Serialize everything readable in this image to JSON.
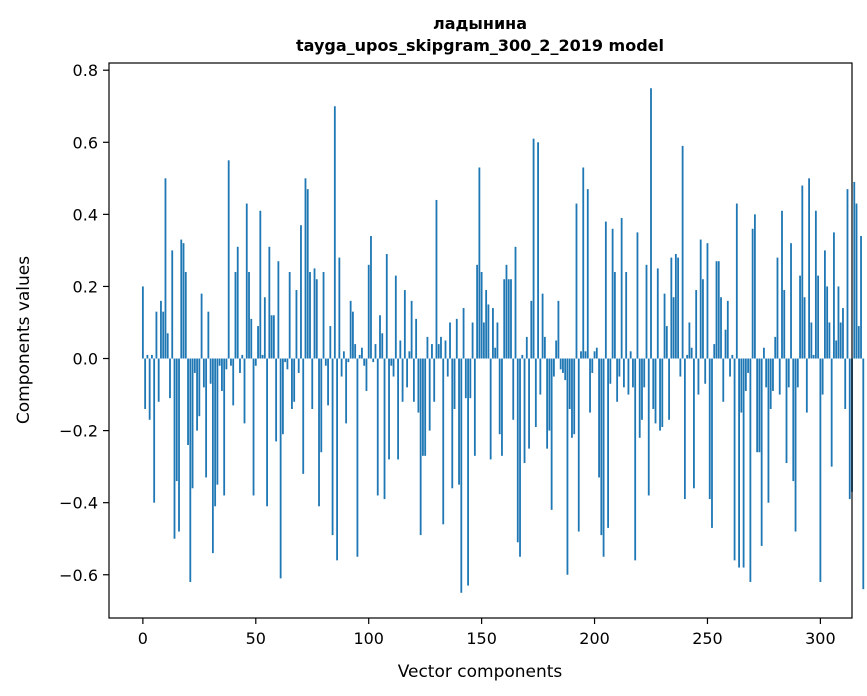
{
  "chart_data": {
    "type": "bar",
    "title": "ладынина",
    "subtitle": "tayga_upos_skipgram_300_2_2019 model",
    "xlabel": "Vector components",
    "ylabel": "Components values",
    "xlim": [
      -15,
      314
    ],
    "ylim": [
      -0.72,
      0.82
    ],
    "xticks": [
      0,
      50,
      100,
      150,
      200,
      250,
      300
    ],
    "yticks": [
      -0.6,
      -0.4,
      -0.2,
      0.0,
      0.2,
      0.4,
      0.6,
      0.8
    ],
    "ytick_labels": [
      "−0.6",
      "−0.4",
      "−0.2",
      "0.0",
      "0.2",
      "0.4",
      "0.6",
      "0.8"
    ],
    "grid": false,
    "bar_color": "#1f77b4",
    "values": [
      0.2,
      -0.14,
      0.01,
      -0.17,
      0.01,
      -0.4,
      0.13,
      -0.12,
      0.16,
      0.13,
      0.5,
      0.07,
      -0.11,
      0.3,
      -0.5,
      -0.34,
      -0.48,
      0.33,
      0.32,
      0.24,
      -0.24,
      -0.62,
      -0.36,
      -0.04,
      -0.2,
      -0.16,
      0.18,
      -0.08,
      -0.33,
      0.13,
      -0.07,
      -0.54,
      -0.41,
      -0.35,
      -0.02,
      -0.09,
      -0.38,
      -0.03,
      0.55,
      -0.02,
      -0.13,
      0.24,
      0.31,
      -0.04,
      0.01,
      -0.18,
      0.43,
      0.24,
      0.11,
      -0.38,
      -0.02,
      0.09,
      0.41,
      0.01,
      0.17,
      -0.41,
      0.31,
      0.12,
      0.12,
      -0.23,
      0.27,
      -0.61,
      -0.21,
      -0.01,
      -0.03,
      0.24,
      -0.14,
      -0.12,
      0.19,
      -0.04,
      0.37,
      -0.32,
      0.5,
      0.47,
      0.24,
      -0.14,
      0.25,
      0.22,
      -0.41,
      -0.26,
      0.24,
      -0.02,
      -0.13,
      0.09,
      -0.49,
      0.7,
      -0.56,
      0.28,
      -0.05,
      0.02,
      -0.18,
      -0.01,
      0.16,
      0.13,
      0.04,
      -0.55,
      0.01,
      0.03,
      -0.02,
      -0.09,
      0.26,
      0.34,
      -0.01,
      0.04,
      -0.38,
      0.12,
      0.07,
      -0.39,
      0.29,
      -0.28,
      -0.02,
      -0.05,
      0.23,
      -0.28,
      0.05,
      -0.12,
      0.19,
      -0.08,
      0.02,
      0.16,
      -0.12,
      0.11,
      -0.15,
      -0.49,
      -0.27,
      -0.27,
      0.06,
      -0.2,
      0.04,
      -0.12,
      0.44,
      0.04,
      0.06,
      -0.46,
      0.05,
      -0.05,
      0.1,
      -0.36,
      -0.14,
      0.11,
      -0.35,
      -0.65,
      0.14,
      -0.11,
      -0.63,
      -0.11,
      0.1,
      -0.27,
      0.26,
      0.53,
      0.24,
      0.1,
      0.19,
      0.15,
      -0.28,
      0.14,
      0.03,
      0.1,
      -0.21,
      -0.27,
      0.22,
      0.26,
      0.22,
      0.22,
      -0.17,
      0.31,
      -0.51,
      -0.55,
      0.01,
      -0.29,
      0.06,
      -0.25,
      0.16,
      0.61,
      -0.19,
      0.6,
      -0.1,
      0.18,
      0.06,
      -0.25,
      -0.2,
      -0.42,
      -0.05,
      0.05,
      0.16,
      -0.03,
      -0.04,
      -0.06,
      -0.6,
      -0.14,
      -0.22,
      -0.21,
      0.43,
      -0.48,
      0.02,
      0.53,
      0.02,
      0.47,
      -0.15,
      -0.04,
      0.02,
      0.03,
      -0.33,
      -0.49,
      -0.55,
      0.38,
      -0.47,
      -0.07,
      0.36,
      0.24,
      -0.12,
      -0.05,
      0.39,
      -0.08,
      0.24,
      -0.1,
      0.02,
      -0.08,
      -0.56,
      0.35,
      -0.22,
      -0.17,
      -0.08,
      0.26,
      -0.38,
      0.75,
      -0.14,
      -0.18,
      0.25,
      -0.2,
      -0.19,
      0.18,
      0.09,
      -0.17,
      0.28,
      0.17,
      0.29,
      0.28,
      -0.05,
      0.59,
      -0.39,
      0.01,
      0.1,
      0.03,
      -0.36,
      0.19,
      -0.1,
      0.33,
      0.22,
      -0.07,
      0.32,
      -0.39,
      -0.47,
      0.04,
      0.27,
      0.27,
      0.17,
      -0.12,
      0.08,
      0.16,
      -0.05,
      0.01,
      -0.56,
      0.43,
      -0.58,
      -0.15,
      -0.58,
      -0.09,
      -0.04,
      -0.62,
      0.36,
      0.4,
      -0.26,
      -0.26,
      -0.52,
      0.03,
      -0.08,
      -0.4,
      -0.14,
      -0.09,
      0.06,
      0.28,
      -0.1,
      0.41,
      0.19,
      -0.29,
      -0.08,
      0.32,
      -0.34,
      -0.48,
      -0.08,
      0.23,
      0.48,
      0.17,
      -0.15,
      0.5,
      0.1,
      0.01,
      0.41,
      0.23,
      -0.62,
      -0.1,
      0.3,
      0.2,
      0.1,
      -0.3,
      0.35,
      0.05,
      0.2,
      0.1,
      0.14,
      -0.14,
      0.47,
      -0.39,
      -0.37,
      0.49,
      0.43,
      0.09,
      0.34,
      -0.64
    ]
  }
}
